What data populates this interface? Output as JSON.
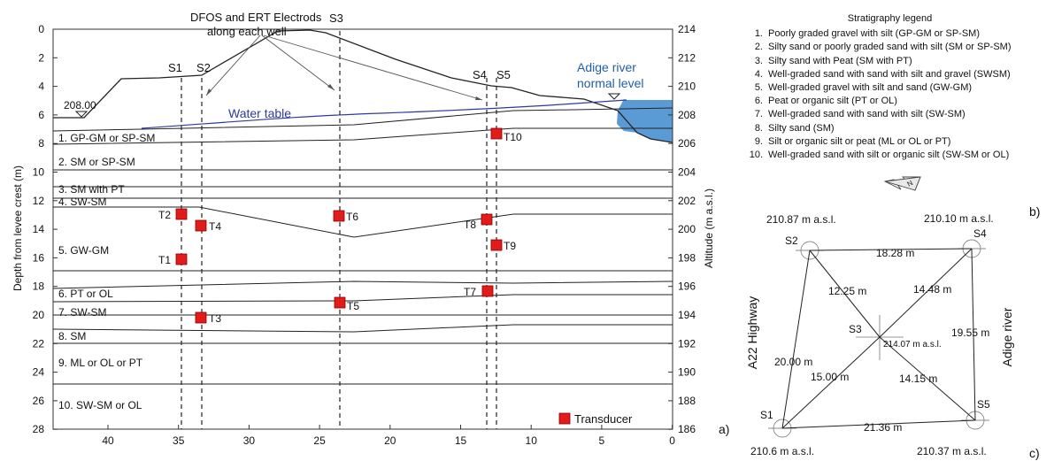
{
  "section": {
    "y_axis_left_label": "Depth from levee crest (m)",
    "y_axis_right_label": "Altitude (m a.s.l.)",
    "x_ticks": [
      "40",
      "35",
      "30",
      "25",
      "20",
      "15",
      "10",
      "5",
      "0"
    ],
    "depth_ticks": [
      "0",
      "2",
      "4",
      "6",
      "8",
      "10",
      "12",
      "14",
      "16",
      "18",
      "20",
      "22",
      "24",
      "26",
      "28"
    ],
    "altitude_ticks": [
      "214",
      "212",
      "210",
      "208",
      "206",
      "204",
      "202",
      "200",
      "198",
      "196",
      "194",
      "192",
      "190",
      "188",
      "186"
    ],
    "wells": [
      "S1",
      "S2",
      "S3",
      "S4",
      "S5"
    ],
    "annotation": [
      "DFOS and ERT Electrods",
      "along each well"
    ],
    "left_level": "208.00",
    "water_table_label": "Water table",
    "river_label": [
      "Adige river",
      "normal level"
    ],
    "layers": [
      "1.  GP-GM or SP-SM",
      "2. SM or SP-SM",
      "3. SM with PT",
      "4. SW-SM",
      "5.  GW-GM",
      "6.  PT or OL",
      "7.  SW-SM",
      "8.  SM",
      "9.  ML or OL or PT",
      "10. SW-SM or OL"
    ],
    "transducers": [
      "T1",
      "T2",
      "T3",
      "T4",
      "T5",
      "T6",
      "T7",
      "T8",
      "T9",
      "T10"
    ],
    "transducer_legend": "Transducer",
    "transducer_color": "#e21b1b",
    "water_color": "#5b9bd5",
    "water_table_color": "#2e3b9e",
    "panel_label": "a)"
  },
  "legend": {
    "title": "Stratigraphy legend",
    "items": [
      {
        "num": "1.",
        "text": "Poorly graded gravel with silt (GP-GM or SP-SM)"
      },
      {
        "num": "2.",
        "text": "Silty sand or poorly graded sand with silt (SM or SP-SM)"
      },
      {
        "num": "3.",
        "text": "Silty sand with Peat (SM with PT)"
      },
      {
        "num": "4.",
        "text": "Well-graded sand with sand with silt and gravel (SWSM)"
      },
      {
        "num": "5.",
        "text": "Well-graded gravel with silt and sand (GW-GM)"
      },
      {
        "num": "6.",
        "text": "Peat or organic silt (PT or OL)"
      },
      {
        "num": "7.",
        "text": "Well-graded sand with sand with silt (SW-SM)"
      },
      {
        "num": "8.",
        "text": "Silty sand (SM)"
      },
      {
        "num": "9.",
        "text": "Silt or organic silt or peat (ML or OL or PT)"
      },
      {
        "num": "10.",
        "text": "Well-graded sand with silt or organic silt (SW-SM or OL)"
      }
    ],
    "panel_label": "b)"
  },
  "plan": {
    "wells": [
      {
        "name": "S1",
        "elev": "210.6 m a.s.l."
      },
      {
        "name": "S2",
        "elev": "210.87 m a.s.l."
      },
      {
        "name": "S3",
        "elev": "214.07 m a.s.l."
      },
      {
        "name": "S4",
        "elev": "210.10 m a.s.l."
      },
      {
        "name": "S5",
        "elev": "210.37 m a.s.l."
      }
    ],
    "distances": [
      "18.28 m",
      "12.25 m",
      "14.48 m",
      "20.00 m",
      "19.55 m",
      "15.00 m",
      "14.15 m",
      "21.36 m"
    ],
    "left_label": "A22 Highway",
    "right_label": "Adige river",
    "north": "N",
    "panel_label": "c)"
  }
}
